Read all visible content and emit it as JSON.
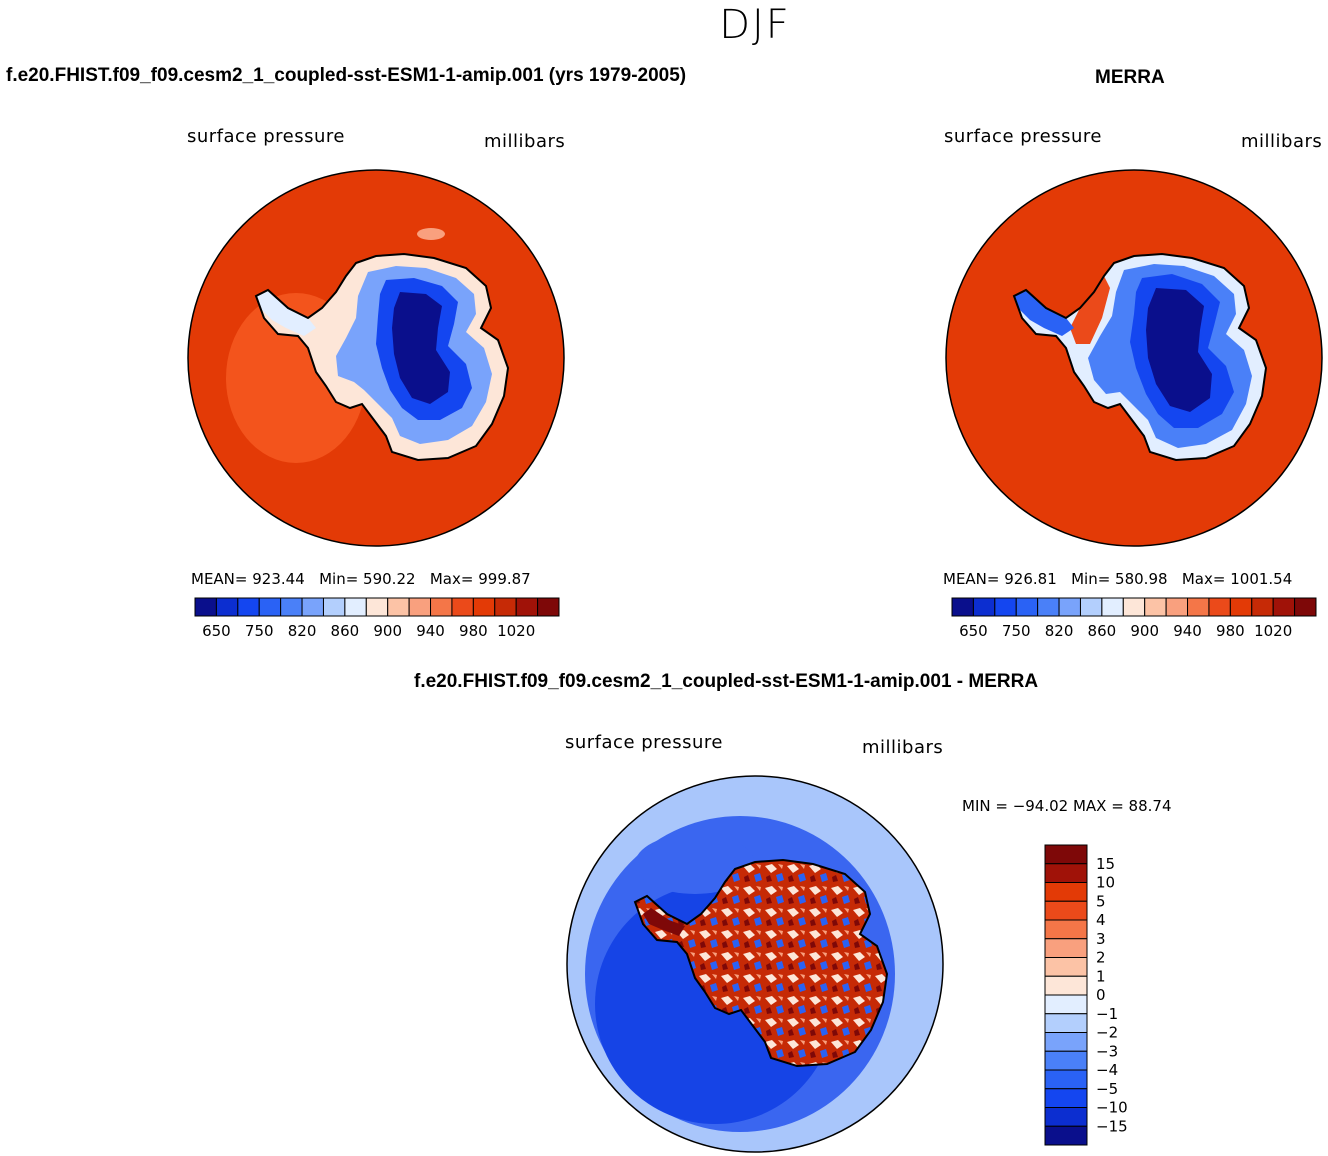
{
  "title": "DJF",
  "colors": {
    "scale": [
      "#0a0f8c",
      "#0c2ed0",
      "#1446f0",
      "#2a62f5",
      "#4a80f8",
      "#79a3fb",
      "#b3cffd",
      "#e2eeff",
      "#fde6d8",
      "#fcc3a6",
      "#f9a07e",
      "#f47648",
      "#eb4a1a",
      "#e33a06",
      "#c62a06",
      "#a01208",
      "#7e0808"
    ],
    "ocean_model": "#e33a06",
    "ocean_model_sector": "#f3541c",
    "ocean_obs": "#e33a06",
    "diff_far": "#1644e6",
    "diff_mid": "#3a66f0",
    "diff_light": "#a9c6fb"
  },
  "panels": [
    {
      "id": "model",
      "title": "f.e20.FHIST.f09_f09.cesm2_1_coupled-sst-ESM1-1-amip.001 (yrs 1979-2005)",
      "left_label": "surface pressure",
      "right_label": "millibars",
      "mean_label": "MEAN=",
      "mean_value": "923.44",
      "min_label": "Min=",
      "min_value": "590.22",
      "max_label": "Max=",
      "max_value": "999.87"
    },
    {
      "id": "obs",
      "title": "MERRA",
      "left_label": "surface pressure",
      "right_label": "millibars",
      "mean_label": "MEAN=",
      "mean_value": "926.81",
      "min_label": "Min=",
      "min_value": "580.98",
      "max_label": "Max=",
      "max_value": "1001.54"
    },
    {
      "id": "diff",
      "title": "f.e20.FHIST.f09_f09.cesm2_1_coupled-sst-ESM1-1-amip.001 - MERRA",
      "left_label": "surface pressure",
      "right_label": "millibars",
      "minmax_text": "MIN = −94.02 MAX =   88.74"
    }
  ],
  "chart_data": [
    {
      "type": "heatmap",
      "projection": "south polar stereographic",
      "title": "f.e20.FHIST.f09_f09.cesm2_1_coupled-sst-ESM1-1-amip.001 (yrs 1979-2005)",
      "variable": "surface pressure",
      "units": "millibars",
      "mean": 923.44,
      "min": 590.22,
      "max": 999.87,
      "colorbar_ticks": [
        "650",
        "750",
        "820",
        "860",
        "900",
        "940",
        "980",
        "1020"
      ]
    },
    {
      "type": "heatmap",
      "projection": "south polar stereographic",
      "title": "MERRA",
      "variable": "surface pressure",
      "units": "millibars",
      "mean": 926.81,
      "min": 580.98,
      "max": 1001.54,
      "colorbar_ticks": [
        "650",
        "750",
        "820",
        "860",
        "900",
        "940",
        "980",
        "1020"
      ]
    },
    {
      "type": "heatmap",
      "projection": "south polar stereographic",
      "title": "f.e20.FHIST.f09_f09.cesm2_1_coupled-sst-ESM1-1-amip.001 - MERRA",
      "variable": "surface pressure",
      "units": "millibars",
      "min": -94.02,
      "max": 88.74,
      "colorbar_ticks": [
        "15",
        "10",
        "5",
        "4",
        "3",
        "2",
        "1",
        "0",
        "−1",
        "−2",
        "−3",
        "−4",
        "−5",
        "−10",
        "−15"
      ]
    }
  ]
}
